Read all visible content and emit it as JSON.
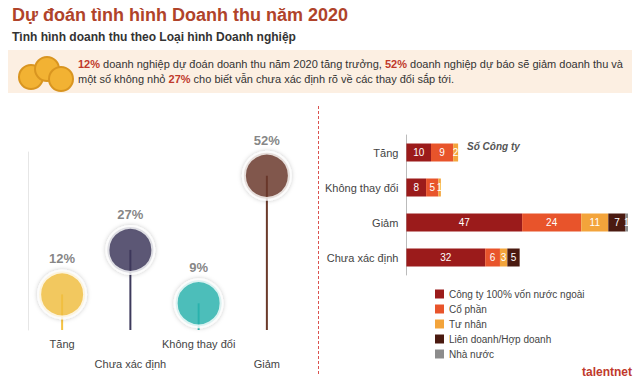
{
  "title": "Dự đoán tình hình Doanh thu năm 2020",
  "subtitle": "Tình hình doanh thu theo Loại hình Doanh nghiệp",
  "description": [
    {
      "text": "12%",
      "emphasis": true
    },
    {
      "text": " doanh nghiệp dự đoán doanh thu năm 2020 tăng trưởng, "
    },
    {
      "text": "52%",
      "emphasis": true
    },
    {
      "text": " doanh nghiệp dự báo sẽ giảm doanh thu và một số không nhỏ "
    },
    {
      "text": "27%",
      "emphasis": true
    },
    {
      "text": " cho biết vẫn chưa xác định rõ về các thay đổi sắp tới."
    }
  ],
  "logo": "talentnet",
  "chart_data": [
    {
      "type": "lollipop",
      "categories": [
        "Tăng",
        "Chưa xác định",
        "Không thay đổi",
        "Giảm"
      ],
      "values": [
        12,
        27,
        9,
        52
      ],
      "value_labels": [
        "12%",
        "27%",
        "9%",
        "52%"
      ],
      "colors": [
        "#f5c242",
        "#3d3a5c",
        "#2bb5b0",
        "#6b3a2a"
      ],
      "marker": "circle",
      "ylim": [
        0,
        60
      ],
      "yticks": [
        0,
        60
      ],
      "tick_labels": "x",
      "data_labels": true,
      "grid": false
    },
    {
      "type": "bar",
      "orientation": "horizontal",
      "stacked": true,
      "categories": [
        "Tăng",
        "Không thay đổi",
        "Giảm",
        "Chưa xác định"
      ],
      "series": [
        {
          "name": "Công ty 100% vốn nước ngoài",
          "color": "#9b1b1b",
          "values": [
            10,
            8,
            47,
            32
          ]
        },
        {
          "name": "Cổ phần",
          "color": "#e8542b",
          "values": [
            9,
            5,
            24,
            6
          ]
        },
        {
          "name": "Tư nhân",
          "color": "#f3a43b",
          "values": [
            2,
            1,
            11,
            3
          ]
        },
        {
          "name": "Liên doanh/Hợp doanh",
          "color": "#4a1a10",
          "values": [
            null,
            null,
            7,
            5
          ]
        },
        {
          "name": "Nhà nước",
          "color": "#8c8c8c",
          "values": [
            null,
            null,
            1,
            null
          ]
        }
      ],
      "annotations": [
        "Số Công ty"
      ],
      "xlim": [
        0,
        90
      ],
      "xticks": [
        0,
        90
      ],
      "tick_labels": "y",
      "data_labels": true,
      "legend": "bottom-right",
      "grid": false
    }
  ]
}
